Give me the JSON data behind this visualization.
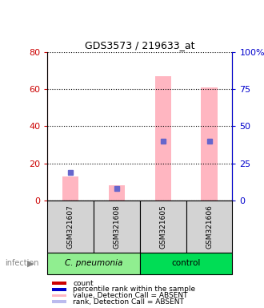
{
  "title": "GDS3573 / 219633_at",
  "samples": [
    "GSM321607",
    "GSM321608",
    "GSM321605",
    "GSM321606"
  ],
  "groups": [
    "C. pneumonia",
    "C. pneumonia",
    "control",
    "control"
  ],
  "group_colors": [
    "#90EE90",
    "#90EE90",
    "#90EE90",
    "#90EE90"
  ],
  "group_bg_colors": [
    "#90EE90",
    "#00CC44"
  ],
  "group_names": [
    "C. pneumonia",
    "control"
  ],
  "pink_bars": [
    13,
    8,
    67,
    61
  ],
  "blue_dots": [
    19,
    8,
    40,
    40
  ],
  "ylim_left": [
    0,
    80
  ],
  "ylim_right": [
    0,
    100
  ],
  "yticks_left": [
    0,
    20,
    40,
    60,
    80
  ],
  "yticks_right": [
    0,
    25,
    50,
    75,
    100
  ],
  "ytick_labels_right": [
    "0",
    "25",
    "50",
    "75",
    "100%"
  ],
  "left_axis_color": "#CC0000",
  "right_axis_color": "#0000CC",
  "bar_color": "#FFB6C1",
  "dot_color": "#6666CC",
  "legend_items": [
    {
      "label": "count",
      "color": "#CC0000",
      "marker": "s"
    },
    {
      "label": "percentile rank within the sample",
      "color": "#0000CC",
      "marker": "s"
    },
    {
      "label": "value, Detection Call = ABSENT",
      "color": "#FFB6C1",
      "marker": "s"
    },
    {
      "label": "rank, Detection Call = ABSENT",
      "color": "#BBBBEE",
      "marker": "s"
    }
  ]
}
